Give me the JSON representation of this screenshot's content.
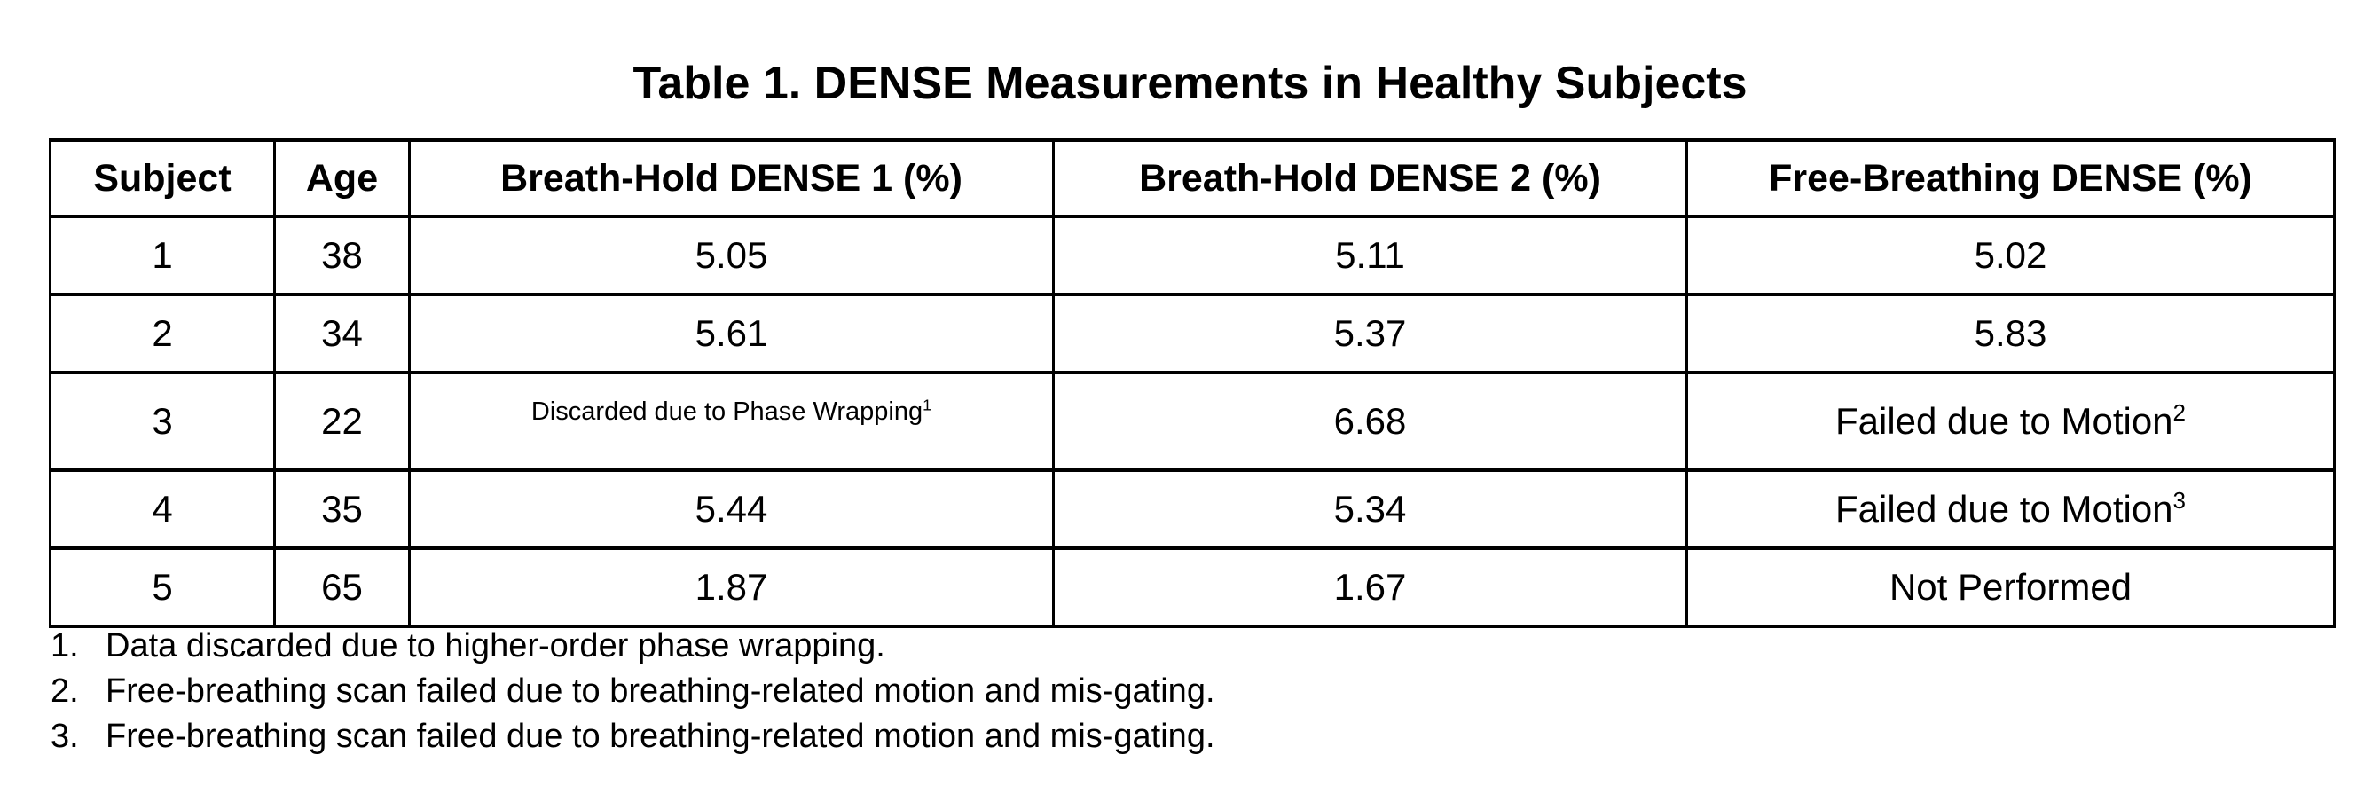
{
  "title": "Table 1. DENSE Measurements in Healthy Subjects",
  "table": {
    "columns": [
      "Subject",
      "Age",
      "Breath-Hold DENSE 1 (%)",
      "Breath-Hold DENSE 2 (%)",
      "Free-Breathing DENSE (%)"
    ],
    "rows": [
      {
        "subject": "1",
        "age": "38",
        "bh1": "5.05",
        "bh2": "5.11",
        "fb": "5.02"
      },
      {
        "subject": "2",
        "age": "34",
        "bh1": "5.61",
        "bh2": "5.37",
        "fb": "5.83"
      },
      {
        "subject": "3",
        "age": "22",
        "bh1": "Discarded due to Phase Wrapping",
        "bh1_sup": "1",
        "bh1_small": true,
        "bh2": "6.68",
        "fb": "Failed due to Motion",
        "fb_sup": "2"
      },
      {
        "subject": "4",
        "age": "35",
        "bh1": "5.44",
        "bh2": "5.34",
        "fb": "Failed due to Motion",
        "fb_sup": "3"
      },
      {
        "subject": "5",
        "age": "65",
        "bh1": "1.87",
        "bh2": "1.67",
        "fb": "Not Performed"
      }
    ]
  },
  "footnotes": [
    {
      "marker": "1.",
      "text": "Data discarded due to higher-order phase wrapping."
    },
    {
      "marker": "2.",
      "text": "Free-breathing scan failed due to breathing-related motion and mis-gating."
    },
    {
      "marker": "3.",
      "text": "Free-breathing scan failed due to breathing-related motion and mis-gating."
    }
  ],
  "colors": {
    "text": "#000000",
    "background": "#ffffff",
    "border": "#000000"
  }
}
